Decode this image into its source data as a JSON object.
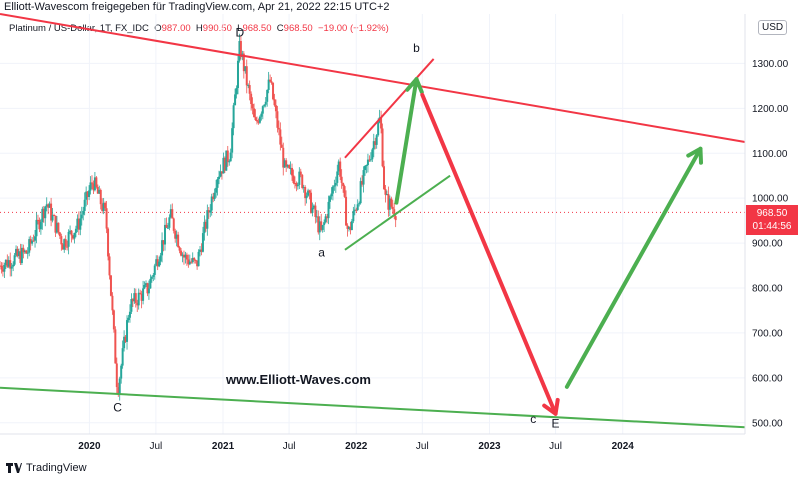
{
  "header": {
    "text": "Elliott-Wavescom freigegeben für TradingView.com, Apr 21, 2022 22:15 UTC+2"
  },
  "legend": {
    "symbol": "Platinum / US-Dollar, 1T, FX_IDC",
    "o_label": "O",
    "o": "987.00",
    "h_label": "H",
    "h": "990.50",
    "l_label": "L",
    "l": "968.50",
    "c_label": "C",
    "c": "968.50",
    "change": "−19.00 (−1.92%)"
  },
  "currency": "USD",
  "last_price": {
    "value": "968.50",
    "countdown": "01:44:56"
  },
  "watermark": "www.Elliott-Waves.com",
  "footer": {
    "brand": "TradingView"
  },
  "wave_labels": {
    "D": "D",
    "C": "C",
    "a": "a",
    "b": "b",
    "c": "c",
    "E": "E"
  },
  "colors": {
    "up": "#26a69a",
    "down": "#ef5350",
    "green_line": "#4caf50",
    "red_line": "#f23645"
  },
  "chart_data": {
    "type": "candlestick",
    "title": "Platinum / US-Dollar, 1T, FX_IDC",
    "ylim": [
      475,
      1410
    ],
    "y_ticks": [
      500,
      600,
      700,
      800,
      900,
      1000,
      1100,
      1200,
      1300
    ],
    "y_tick_labels": [
      "500.00",
      "600.00",
      "700.00",
      "800.00",
      "900.00",
      "1000.00",
      "1100.00",
      "1200.00",
      "1300.00"
    ],
    "x_ticks": [
      {
        "label": "2020",
        "date": "2020-01-01"
      },
      {
        "label": "Jul",
        "date": "2020-07-01"
      },
      {
        "label": "2021",
        "date": "2021-01-01"
      },
      {
        "label": "Jul",
        "date": "2021-07-01"
      },
      {
        "label": "2022",
        "date": "2022-01-01"
      },
      {
        "label": "Jul",
        "date": "2022-07-01"
      },
      {
        "label": "2023",
        "date": "2023-01-01"
      },
      {
        "label": "Jul",
        "date": "2023-07-01"
      },
      {
        "label": "2024",
        "date": "2024-01-01"
      }
    ],
    "x_start": "2019-05-01",
    "x_end": "2024-12-01",
    "price_path": [
      [
        "2019-05-01",
        850
      ],
      [
        "2019-07-15",
        880
      ],
      [
        "2019-09-05",
        990
      ],
      [
        "2019-10-20",
        900
      ],
      [
        "2019-12-01",
        940
      ],
      [
        "2020-01-10",
        1040
      ],
      [
        "2020-02-15",
        960
      ],
      [
        "2020-03-18",
        570
      ],
      [
        "2020-04-20",
        760
      ],
      [
        "2020-06-10",
        800
      ],
      [
        "2020-08-10",
        960
      ],
      [
        "2020-09-15",
        870
      ],
      [
        "2020-10-20",
        850
      ],
      [
        "2020-12-15",
        1050
      ],
      [
        "2021-01-20",
        1100
      ],
      [
        "2021-02-16",
        1340
      ],
      [
        "2021-03-30",
        1160
      ],
      [
        "2021-05-10",
        1260
      ],
      [
        "2021-06-20",
        1060
      ],
      [
        "2021-08-05",
        1040
      ],
      [
        "2021-09-28",
        920
      ],
      [
        "2021-11-15",
        1080
      ],
      [
        "2021-12-10",
        920
      ],
      [
        "2022-01-20",
        1040
      ],
      [
        "2022-03-08",
        1180
      ],
      [
        "2022-03-20",
        1000
      ],
      [
        "2022-04-21",
        968.5
      ]
    ],
    "trendlines": [
      {
        "name": "upper-resistance",
        "color": "#f23645",
        "from": [
          "2019-05-01",
          1410
        ],
        "to": [
          "2024-12-01",
          1125
        ]
      },
      {
        "name": "lower-support",
        "color": "#4caf50",
        "from": [
          "2019-05-01",
          578
        ],
        "to": [
          "2024-12-01",
          490
        ]
      },
      {
        "name": "triangle-upper",
        "color": "#f23645",
        "from": [
          "2021-12-01",
          1090
        ],
        "to": [
          "2022-08-01",
          1310
        ]
      },
      {
        "name": "triangle-lower",
        "color": "#4caf50",
        "from": [
          "2021-12-01",
          885
        ],
        "to": [
          "2022-09-15",
          1050
        ]
      }
    ],
    "projection_arrows": [
      {
        "name": "wave-b-up",
        "color": "#4caf50",
        "from": [
          "2022-04-21",
          990
        ],
        "to": [
          "2022-06-15",
          1265
        ]
      },
      {
        "name": "wave-c-down",
        "color": "#f23645",
        "from": [
          "2022-07-01",
          1230
        ],
        "to": [
          "2023-07-01",
          520
        ]
      },
      {
        "name": "wave-up-after-E",
        "color": "#4caf50",
        "from": [
          "2023-08-01",
          580
        ],
        "to": [
          "2024-08-01",
          1110
        ]
      }
    ],
    "annotations": [
      {
        "text": "D",
        "date": "2021-02-16",
        "price": 1360
      },
      {
        "text": "C",
        "date": "2020-03-18",
        "price": 525
      },
      {
        "text": "a",
        "date": "2021-09-28",
        "price": 870
      },
      {
        "text": "b",
        "date": "2022-06-15",
        "price": 1325
      },
      {
        "text": "c",
        "date": "2023-05-01",
        "price": 500
      },
      {
        "text": "E",
        "date": "2023-07-01",
        "price": 490
      }
    ]
  }
}
